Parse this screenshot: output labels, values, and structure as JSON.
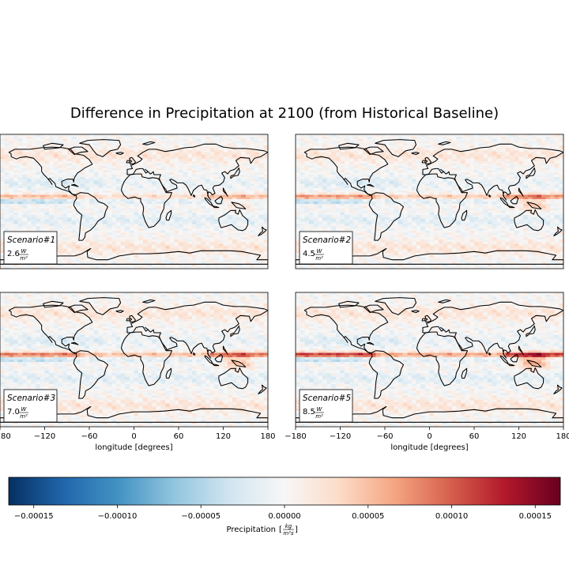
{
  "chart_data": {
    "type": "heatmap",
    "title": "Difference in Precipitation at 2100 (from Historical Baseline)",
    "xlabel": "longitude [degrees]",
    "xlim": [
      -180,
      180
    ],
    "xticks": [
      "−180",
      "−120",
      "−60",
      "0",
      "60",
      "120",
      "180"
    ],
    "panels": [
      {
        "scenario": "Scenario#1",
        "value": "2.6",
        "unit_num": "W",
        "unit_den": "m²",
        "itcz_intensity": 0.35,
        "pacific_warm": 0.2
      },
      {
        "scenario": "Scenario#2",
        "value": "4.5",
        "unit_num": "W",
        "unit_den": "m²",
        "itcz_intensity": 0.5,
        "pacific_warm": 0.45
      },
      {
        "scenario": "Scenario#3",
        "value": "7.0",
        "unit_num": "W",
        "unit_den": "m²",
        "itcz_intensity": 0.6,
        "pacific_warm": 0.5
      },
      {
        "scenario": "Scenario#5",
        "value": "8.5",
        "unit_num": "W",
        "unit_den": "m²",
        "itcz_intensity": 0.8,
        "pacific_warm": 0.65
      }
    ],
    "colorbar": {
      "colormap": "RdBu_r",
      "vmin": -0.000165,
      "vmax": 0.000165,
      "ticks": [
        {
          "value": -0.00015,
          "label": "−0.00015"
        },
        {
          "value": -0.0001,
          "label": "−0.00010"
        },
        {
          "value": -5e-05,
          "label": "−0.00005"
        },
        {
          "value": 0.0,
          "label": "0.00000"
        },
        {
          "value": 5e-05,
          "label": "0.00005"
        },
        {
          "value": 0.0001,
          "label": "0.00010"
        },
        {
          "value": 0.00015,
          "label": "0.00015"
        }
      ],
      "label_main": "Precipitation",
      "label_num": "kg",
      "label_den": "m²s"
    },
    "colors": {
      "rdbu": [
        "#053061",
        "#2166ac",
        "#4393c3",
        "#92c5de",
        "#d1e5f0",
        "#f7f7f7",
        "#fddbc7",
        "#f4a582",
        "#d6604d",
        "#b2182b",
        "#67001f"
      ]
    }
  }
}
